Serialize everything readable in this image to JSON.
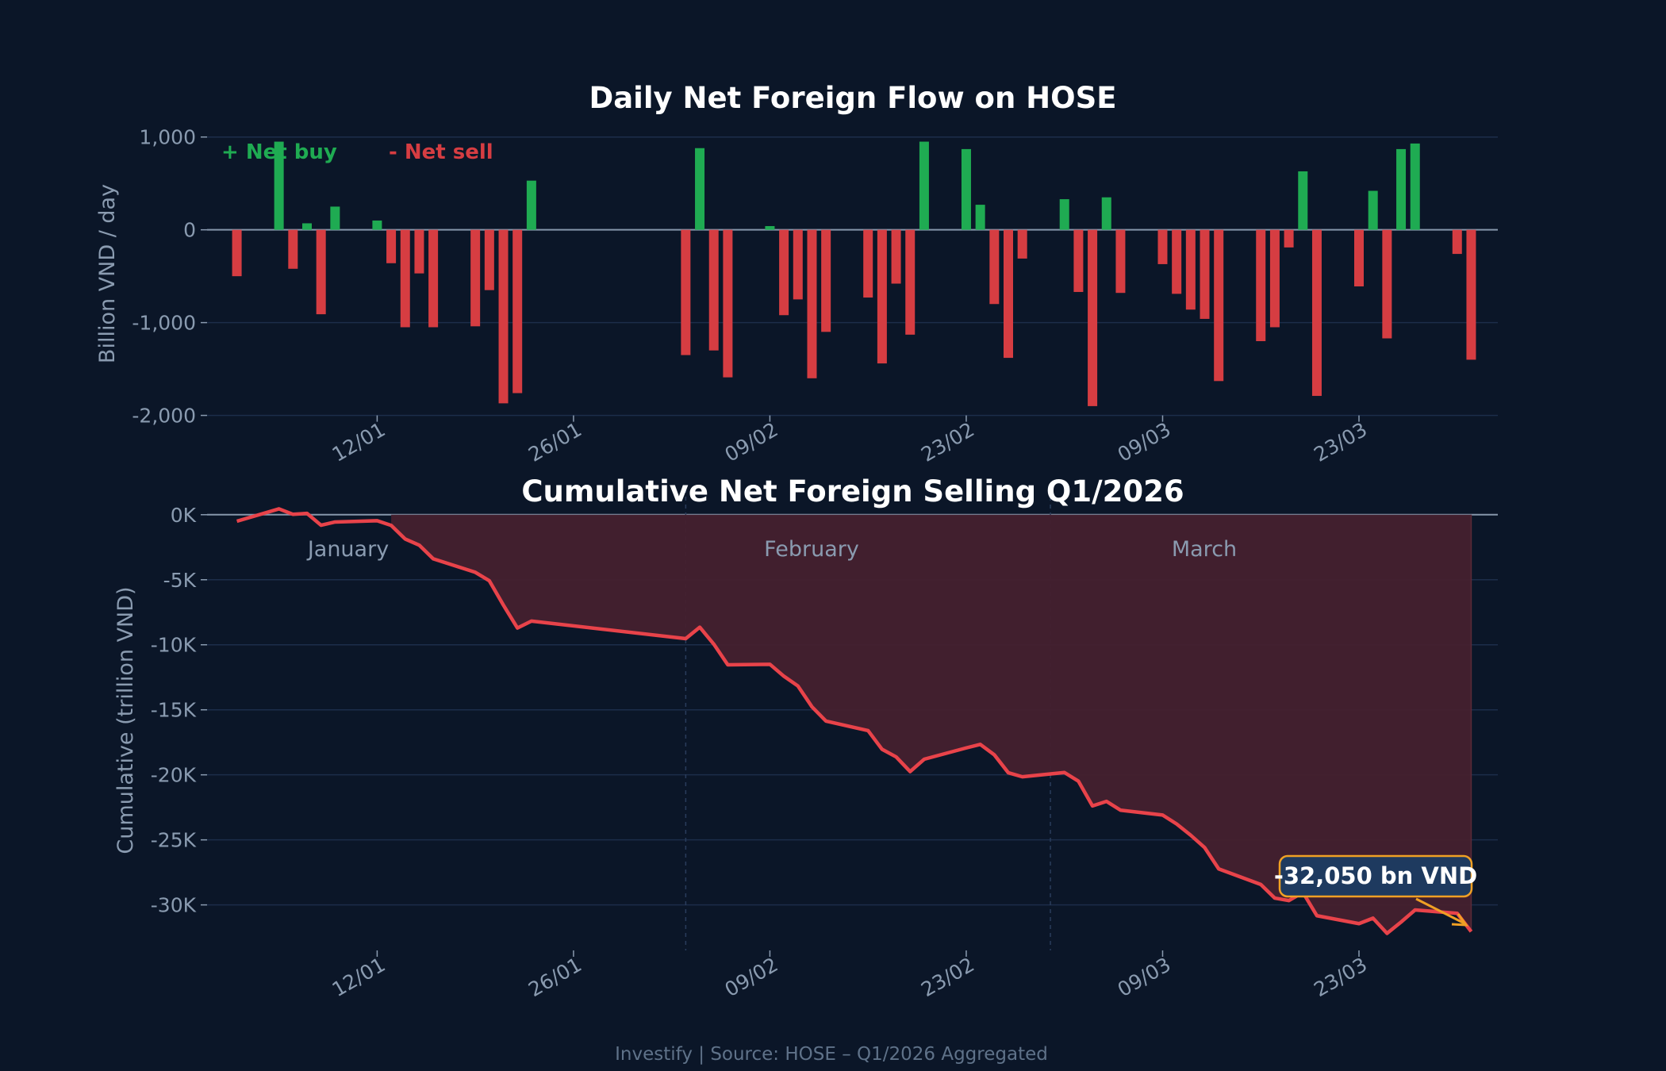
{
  "colors": {
    "background": "#0b1628",
    "net_buy": "#1fab52",
    "net_sell": "#d63d42",
    "cumulative_line": "#e8434a",
    "cumulative_fill": "#44202e",
    "annotation_border": "#f0a024",
    "annotation_fill": "#1e3a5f",
    "grid": "#1c2d4a"
  },
  "chart_data": [
    {
      "type": "bar",
      "title": "Daily Net Foreign Flow on HOSE",
      "ylabel": "Billion VND / day",
      "xlabel": "",
      "ylim": [
        -2000,
        1000
      ],
      "yticks": [
        "1,000",
        "0",
        "-1,000",
        "-2,000"
      ],
      "ytick_values": [
        1000,
        0,
        -1000,
        -2000
      ],
      "xticks": [
        "12/01",
        "26/01",
        "09/02",
        "23/02",
        "09/03",
        "23/03"
      ],
      "grid": true,
      "legend": {
        "placement": "top-left",
        "entries": [
          "+ Net buy",
          "- Net sell"
        ]
      },
      "x": [
        "02/01",
        "05/01",
        "06/01",
        "07/01",
        "08/01",
        "09/01",
        "12/01",
        "13/01",
        "14/01",
        "15/01",
        "16/01",
        "19/01",
        "20/01",
        "21/01",
        "22/01",
        "23/01",
        "03/02",
        "04/02",
        "05/02",
        "06/02",
        "09/02",
        "10/02",
        "11/02",
        "12/02",
        "13/02",
        "16/02",
        "17/02",
        "18/02",
        "19/02",
        "20/02",
        "23/02",
        "24/02",
        "25/02",
        "26/02",
        "27/02",
        "02/03",
        "03/03",
        "04/03",
        "05/03",
        "06/03",
        "09/03",
        "10/03",
        "11/03",
        "12/03",
        "13/03",
        "16/03",
        "17/03",
        "18/03",
        "19/03",
        "20/03",
        "23/03",
        "24/03",
        "25/03",
        "26/03",
        "27/03",
        "30/03",
        "31/03"
      ],
      "values": [
        -500,
        950,
        -420,
        70,
        -910,
        250,
        100,
        -360,
        -1050,
        -470,
        -1050,
        -1040,
        -650,
        -1870,
        -1760,
        530,
        -1350,
        880,
        -1300,
        -1590,
        40,
        -920,
        -750,
        -1600,
        -1100,
        -730,
        -1440,
        -580,
        -1130,
        950,
        870,
        270,
        -800,
        -1380,
        -310,
        330,
        -670,
        -1900,
        350,
        -680,
        -370,
        -690,
        -860,
        -960,
        -1630,
        -1200,
        -1050,
        -190,
        630,
        -1790,
        -610,
        420,
        -1170,
        870,
        930,
        -260,
        -1400
      ]
    },
    {
      "type": "area",
      "title": "Cumulative Net Foreign Selling Q1/2026",
      "ylabel": "Cumulative (trillion VND)",
      "xlabel": "",
      "ylim": [
        -33.5,
        2
      ],
      "yticks": [
        "0K",
        "-5K",
        "-10K",
        "-15K",
        "-20K",
        "-25K",
        "-30K"
      ],
      "ytick_values": [
        0,
        -5,
        -10,
        -15,
        -20,
        -25,
        -30
      ],
      "xticks": [
        "12/01",
        "26/01",
        "09/02",
        "23/02",
        "09/03",
        "23/03"
      ],
      "grid": true,
      "series_rule": "running sum of daily net flow (chart 1)",
      "months": [
        {
          "label": "January"
        },
        {
          "label": "February",
          "starts": "03/02"
        },
        {
          "label": "March",
          "starts": "01/03"
        }
      ],
      "annotation": {
        "text": "-32,050 bn VND",
        "points_to": "31/03",
        "value": -32050
      }
    }
  ],
  "footer": "Investify  |  Source: HOSE – Q1/2026 Aggregated"
}
